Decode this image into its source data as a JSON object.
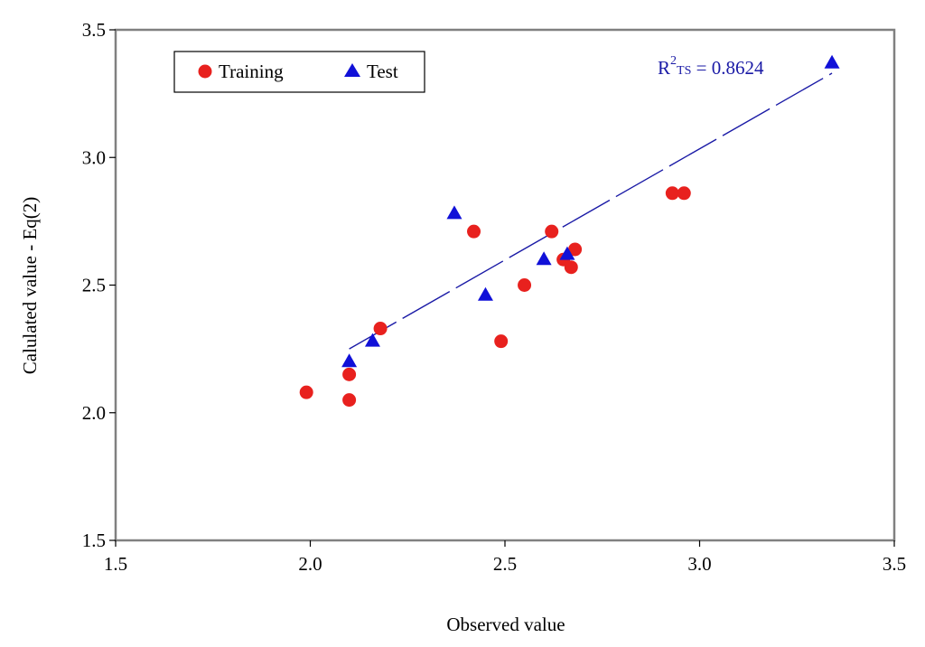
{
  "chart_data": {
    "type": "scatter",
    "title": "",
    "xlabel": "Observed value",
    "ylabel": "Calulated value - Eq(2)",
    "xlim": [
      1.5,
      3.5
    ],
    "ylim": [
      1.5,
      3.5
    ],
    "x_ticks": [
      "1.5",
      "2.0",
      "2.5",
      "3.0",
      "3.5"
    ],
    "y_ticks": [
      "1.5",
      "2.0",
      "2.5",
      "3.0",
      "3.5"
    ],
    "grid": false,
    "legend_position": "top-left",
    "colors": {
      "training": "#e8211e",
      "test": "#1010d8",
      "fit_line": "#1a1aa6",
      "frame": "#808080"
    },
    "series": [
      {
        "name": "Training",
        "marker": "circle",
        "points": [
          [
            1.99,
            2.08
          ],
          [
            2.1,
            2.15
          ],
          [
            2.1,
            2.05
          ],
          [
            2.18,
            2.33
          ],
          [
            2.42,
            2.71
          ],
          [
            2.49,
            2.28
          ],
          [
            2.55,
            2.5
          ],
          [
            2.62,
            2.71
          ],
          [
            2.65,
            2.6
          ],
          [
            2.67,
            2.57
          ],
          [
            2.68,
            2.64
          ],
          [
            2.93,
            2.86
          ],
          [
            2.96,
            2.86
          ]
        ]
      },
      {
        "name": "Test",
        "marker": "triangle",
        "points": [
          [
            2.1,
            2.2
          ],
          [
            2.16,
            2.28
          ],
          [
            2.37,
            2.78
          ],
          [
            2.45,
            2.46
          ],
          [
            2.6,
            2.6
          ],
          [
            2.66,
            2.62
          ],
          [
            3.34,
            3.37
          ]
        ]
      }
    ],
    "fit_line": {
      "x": [
        2.1,
        3.34
      ],
      "y": [
        2.25,
        3.33
      ],
      "style": "dashed"
    },
    "annotation": {
      "prefix": "R",
      "superscript": "2",
      "subscript": "TS",
      "value": " = 0.8624"
    }
  }
}
